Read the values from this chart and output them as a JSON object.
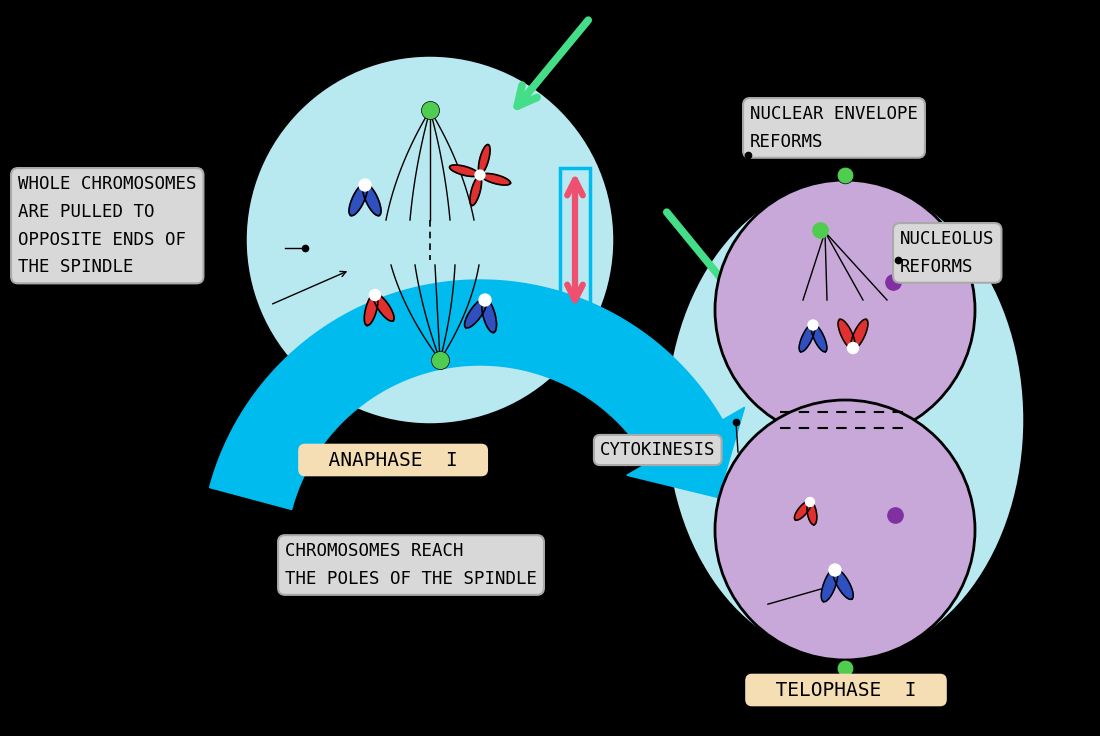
{
  "bg_color": "#000000",
  "cell_light_blue": "#b8e8f0",
  "cell_purple": "#c8a8d8",
  "chr_red": "#e03030",
  "chr_blue": "#3050c0",
  "chr_green": "#50cc50",
  "chr_purple_dot": "#8030a0",
  "arrow_green": "#44dd88",
  "arrow_blue": "#00bbee",
  "arrow_pink": "#f05070",
  "label_bg": "#d8d8d8",
  "label_bg_warm": "#f5deb3",
  "anaphase_label": "ANAPHASE  I",
  "telophase_label": "TELOPHASE  I",
  "cytokinesis_label": "CYTOKINESIS",
  "label1_line1": "WHOLE CHROMOSOMES",
  "label1_line2": "ARE PULLED TO",
  "label1_line3": "OPPOSITE ENDS OF",
  "label1_line4": "THE SPINDLE",
  "label2": "NUCLEAR ENVELOPE\nREFORMS",
  "label3": "NUCLEOLUS\nREFORMS",
  "label4": "CHROMOSOMES REACH\nTHE POLES OF THE SPINDLE"
}
